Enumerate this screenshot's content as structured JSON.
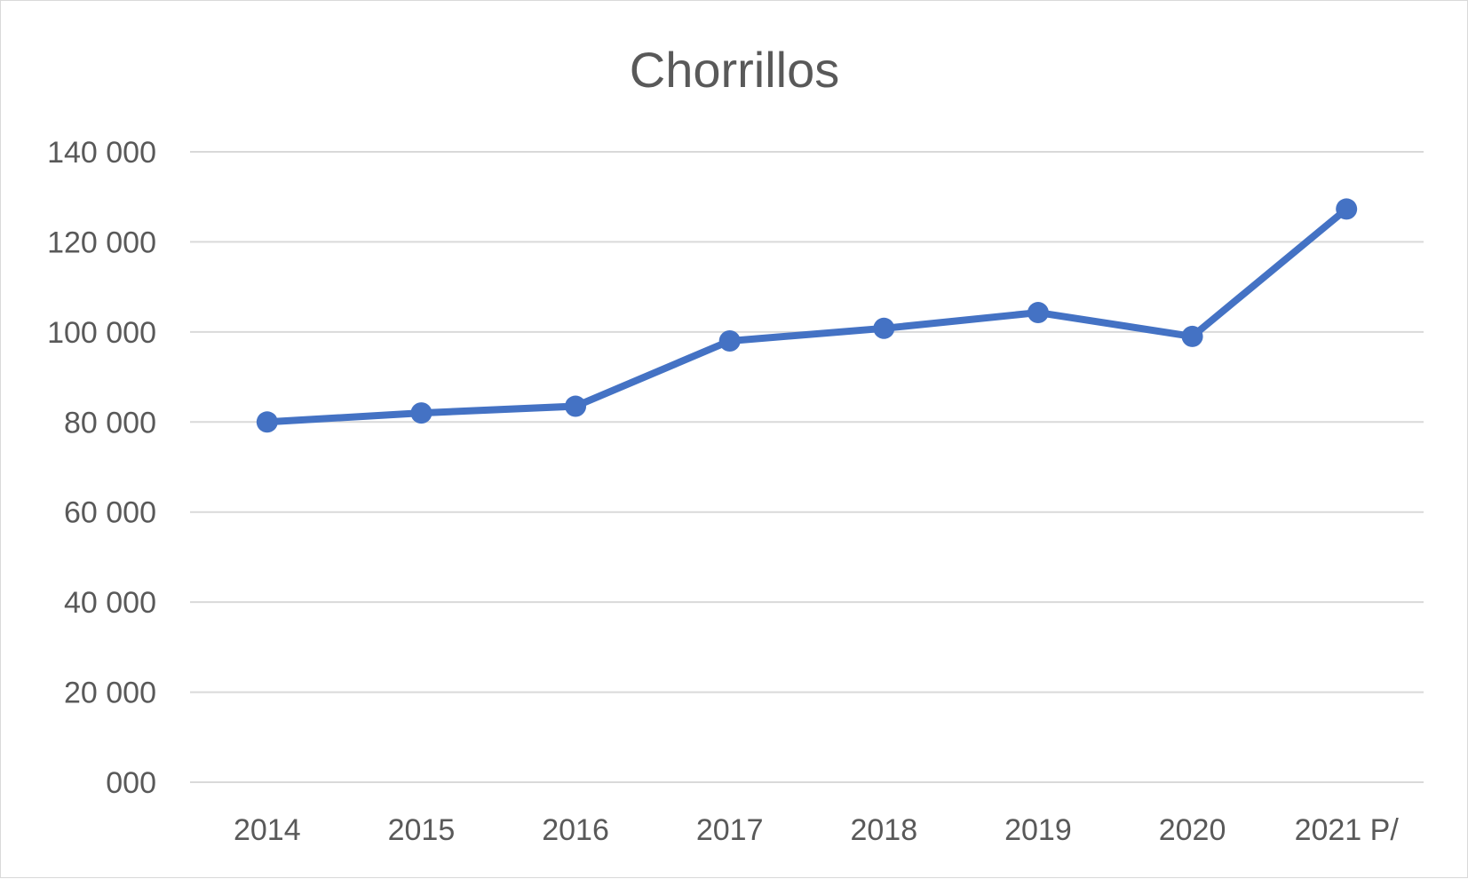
{
  "chart_data": {
    "type": "line",
    "title": "Chorrillos",
    "xlabel": "",
    "ylabel": "",
    "categories": [
      "2014",
      "2015",
      "2016",
      "2017",
      "2018",
      "2019",
      "2020",
      "2021 P/"
    ],
    "series": [
      {
        "values": [
          80000,
          82000,
          83500,
          98000,
          100800,
          104300,
          99000,
          127300
        ],
        "color": "#4472c4"
      }
    ],
    "ylim": [
      0,
      140000
    ],
    "yticks": [
      0,
      20000,
      40000,
      60000,
      80000,
      100000,
      120000,
      140000
    ],
    "ytick_labels": [
      "000",
      "20 000",
      "40 000",
      "60 000",
      "80 000",
      "100 000",
      "120 000",
      "140 000"
    ],
    "grid": true,
    "gridline_color": "#d9d9d9",
    "legend": "none"
  }
}
